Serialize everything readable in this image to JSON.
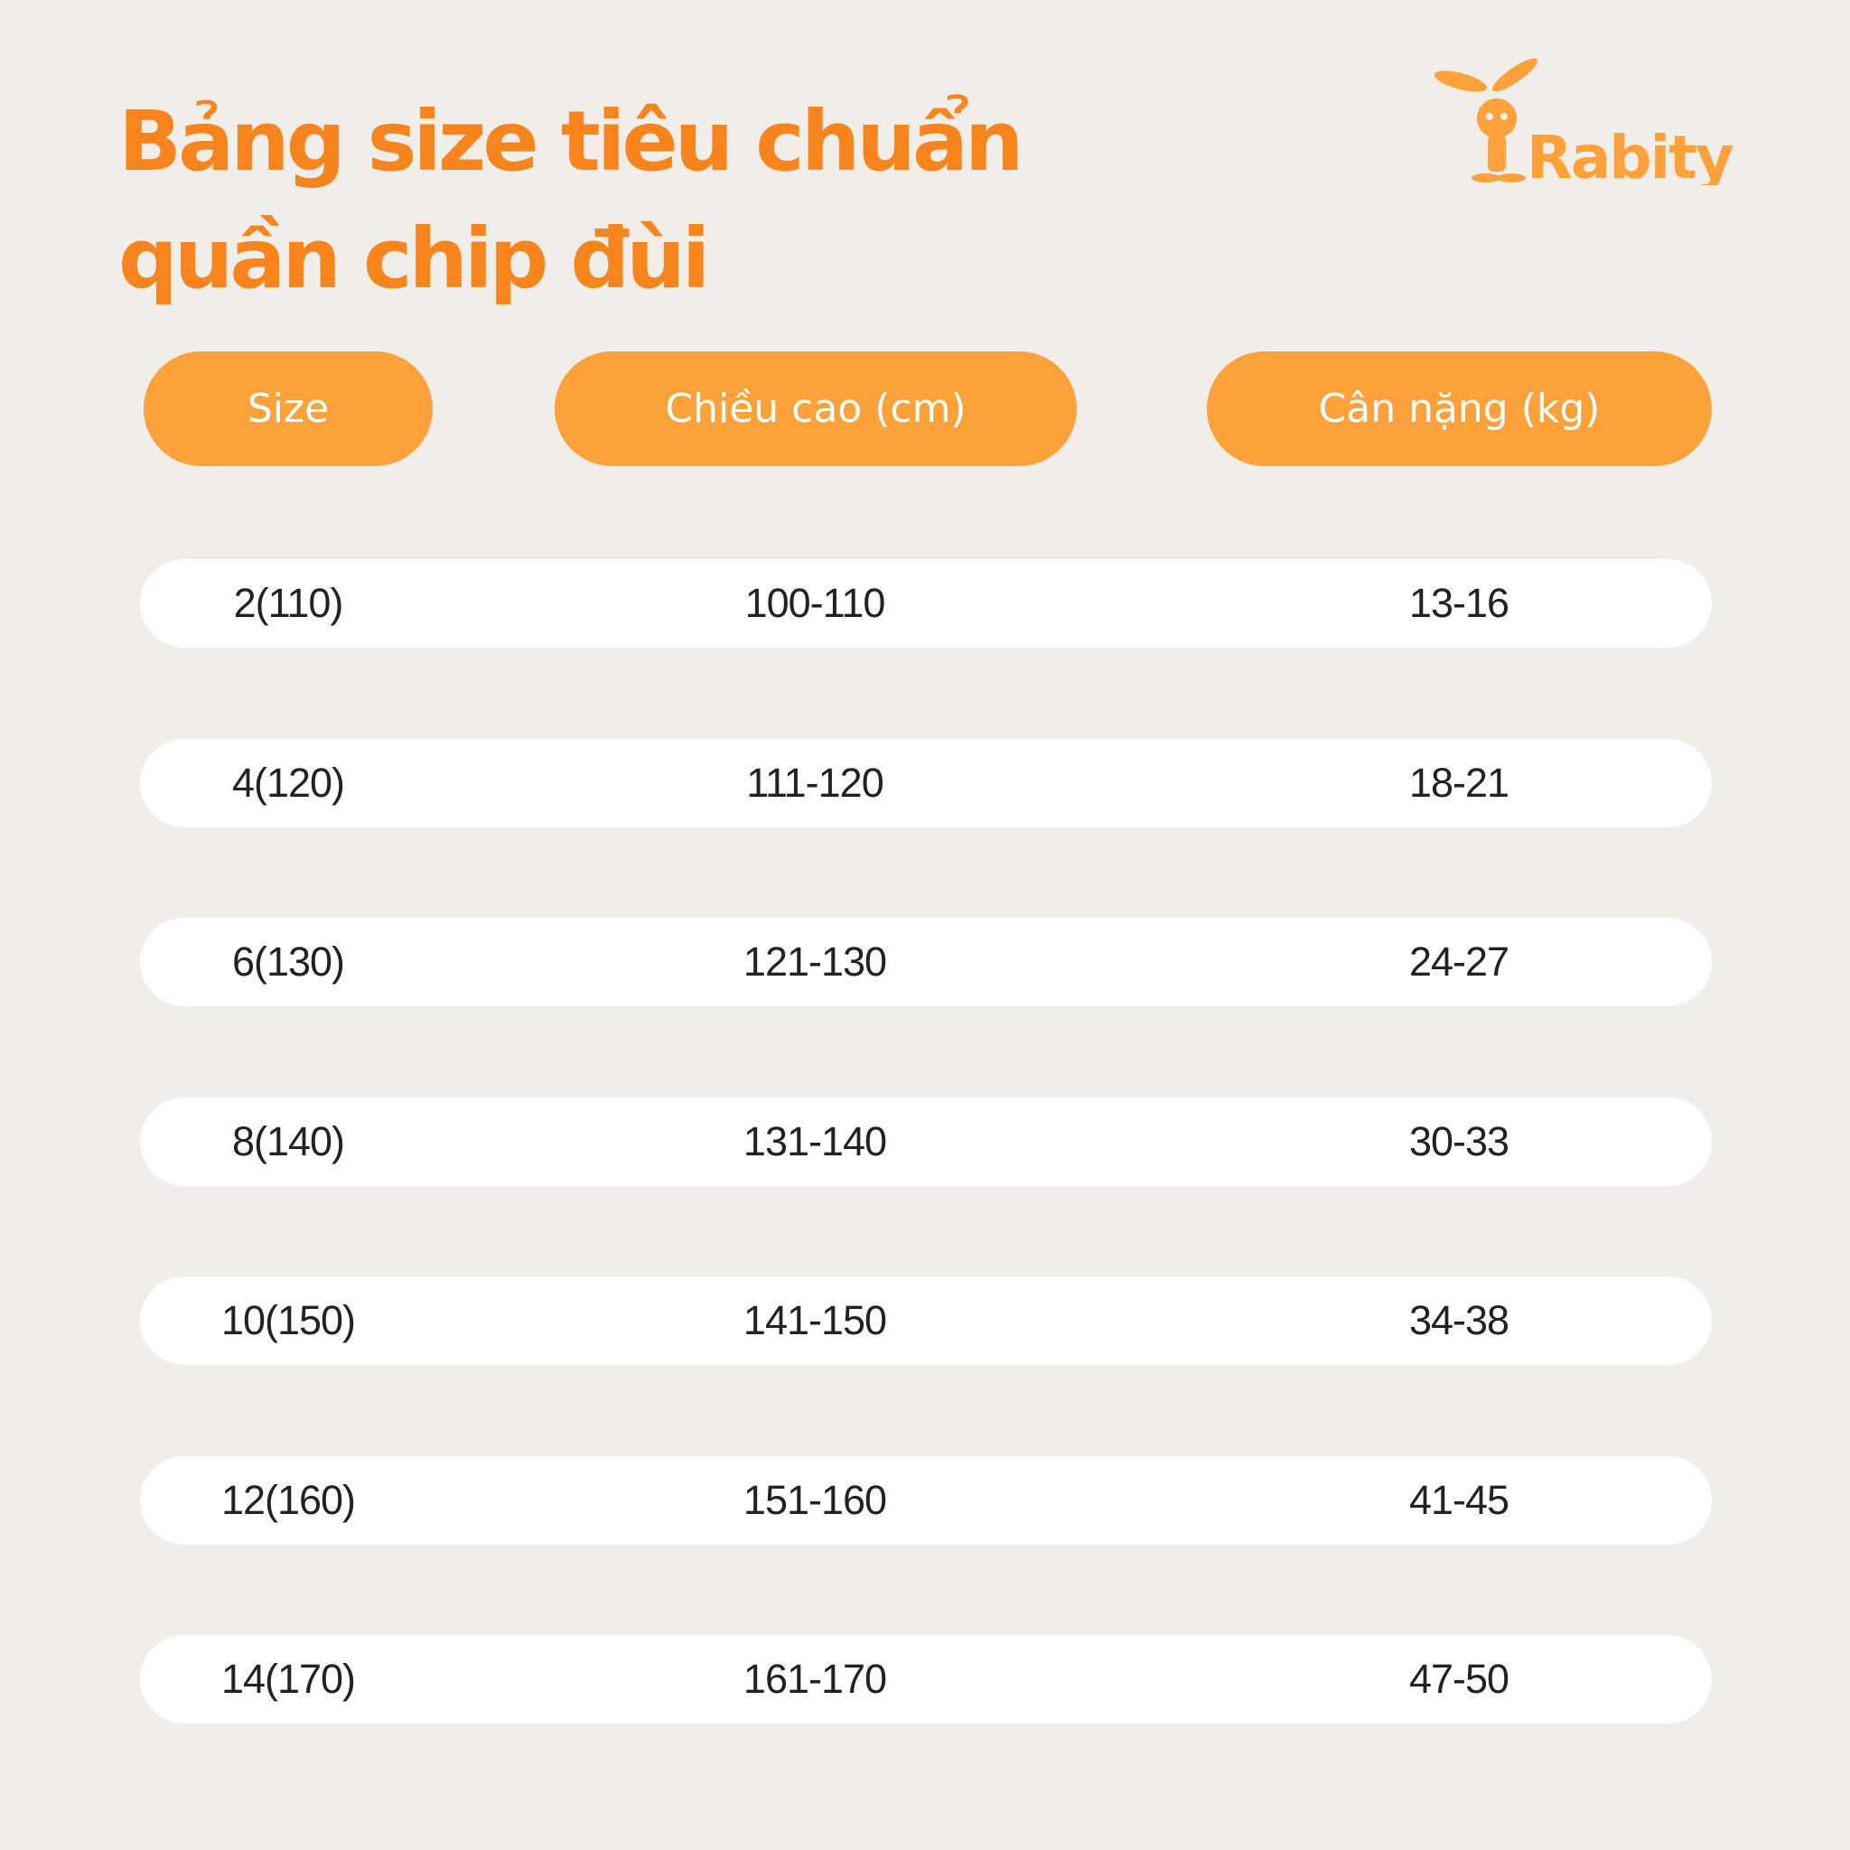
{
  "title": {
    "line1": "Bảng size tiêu chuẩn",
    "line2": "quần chip đùi"
  },
  "logo": {
    "text": "Rabity"
  },
  "colors": {
    "title": "#F7841C",
    "header_pill": "#FDA13B",
    "background": "#F1EEE9",
    "row": "#FFFFFF",
    "text": "#222222"
  },
  "table": {
    "headers": [
      "Size",
      "Chiều cao (cm)",
      "Cân nặng (kg)"
    ],
    "rows": [
      [
        "2(110)",
        "100-110",
        "13-16"
      ],
      [
        "4(120)",
        "111-120",
        "18-21"
      ],
      [
        "6(130)",
        "121-130",
        "24-27"
      ],
      [
        "8(140)",
        "131-140",
        "30-33"
      ],
      [
        "10(150)",
        "141-150",
        "34-38"
      ],
      [
        "12(160)",
        "151-160",
        "41-45"
      ],
      [
        "14(170)",
        "161-170",
        "47-50"
      ]
    ]
  }
}
